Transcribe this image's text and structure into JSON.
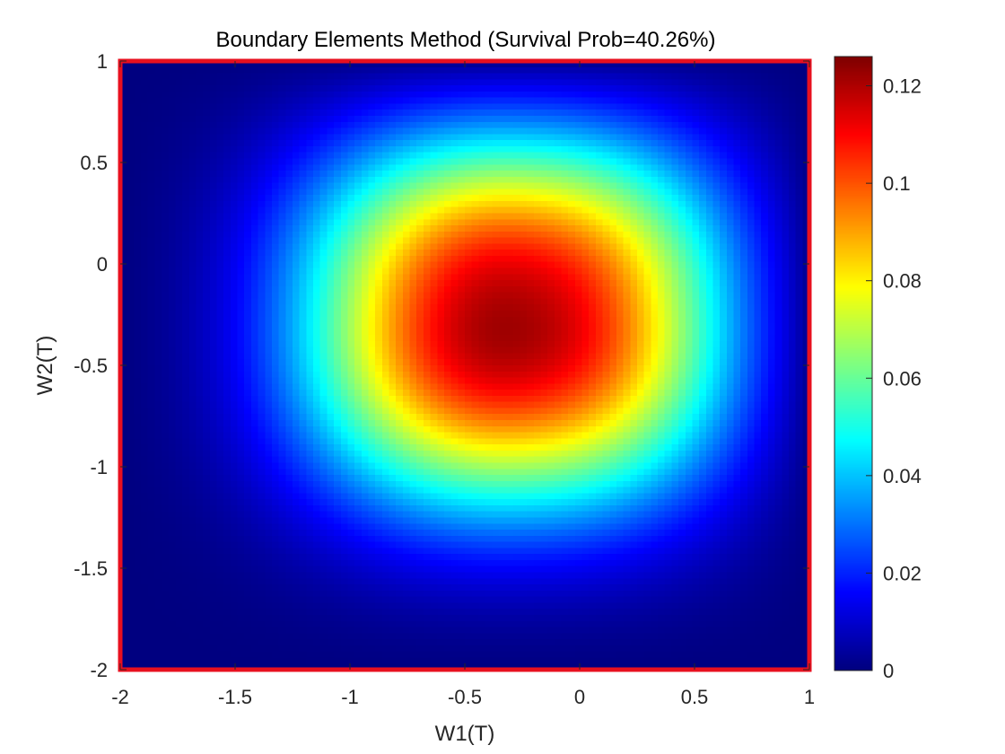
{
  "chart_data": {
    "type": "heatmap",
    "title": "Boundary Elements Method (Survival Prob=40.26%)",
    "xlabel": "W1(T)",
    "ylabel": "W2(T)",
    "xlim": [
      -2,
      1
    ],
    "ylim": [
      -2,
      1
    ],
    "xticks": [
      "-2",
      "-1.5",
      "-1",
      "-0.5",
      "0",
      "0.5",
      "1"
    ],
    "xtick_values": [
      -2,
      -1.5,
      -1,
      -0.5,
      0,
      0.5,
      1
    ],
    "yticks": [
      "1",
      "0.5",
      "0",
      "-0.5",
      "-1",
      "-1.5",
      "-2"
    ],
    "ytick_values": [
      1,
      0.5,
      0,
      -0.5,
      -1,
      -1.5,
      -2
    ],
    "colormap": "jet",
    "clim": [
      0,
      0.126
    ],
    "colorbar_ticks": [
      "0.12",
      "0.1",
      "0.08",
      "0.06",
      "0.04",
      "0.02",
      "0"
    ],
    "colorbar_tick_values": [
      0.12,
      0.1,
      0.08,
      0.06,
      0.04,
      0.02,
      0
    ],
    "peak": {
      "x": -0.2,
      "y": -0.2,
      "value": 0.126
    },
    "boundary_color": "#e8101f",
    "grid_size": [
      100,
      100
    ]
  }
}
